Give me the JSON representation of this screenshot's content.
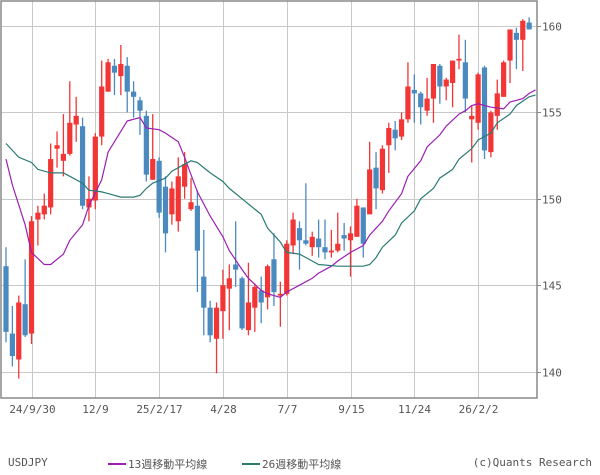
{
  "symbol": "USDJPY",
  "copyright": "(c)Quants Research",
  "legend": [
    {
      "label": "13週移動平均線",
      "color": "#9b1fb3"
    },
    {
      "label": "26週移動平均線",
      "color": "#2a7a72"
    }
  ],
  "colors": {
    "up": "#f23535",
    "down": "#4a8abf",
    "grid": "#c8c8c8",
    "frame": "#888888"
  },
  "chart_data": {
    "type": "candlestick",
    "title": "USDJPY",
    "xlabel": "",
    "ylabel": "",
    "ylim": [
      138.45,
      161.45
    ],
    "yticks": [
      140,
      145,
      150,
      155,
      160
    ],
    "xtick_labels": [
      "24/9/30",
      "12/9",
      "25/2/17",
      "4/28",
      "7/7",
      "9/15",
      "11/24",
      "26/2/2"
    ],
    "xtick_index": [
      4,
      14,
      24,
      34,
      44,
      54,
      64,
      74
    ],
    "grid": true,
    "legend_position": "bottom",
    "candles": [
      [
        146.1,
        147.2,
        141.7,
        142.3
      ],
      [
        142.2,
        143.8,
        140.3,
        140.9
      ],
      [
        140.7,
        144.4,
        139.6,
        144.0
      ],
      [
        143.9,
        146.5,
        142.0,
        142.1
      ],
      [
        142.2,
        149.0,
        141.6,
        148.7
      ],
      [
        148.8,
        149.6,
        147.3,
        149.2
      ],
      [
        149.1,
        150.3,
        148.8,
        149.6
      ],
      [
        149.5,
        153.2,
        149.1,
        152.3
      ],
      [
        152.9,
        153.9,
        151.8,
        153.1
      ],
      [
        152.2,
        154.9,
        151.3,
        152.6
      ],
      [
        152.6,
        156.8,
        152.5,
        154.4
      ],
      [
        154.3,
        155.9,
        153.3,
        154.8
      ],
      [
        154.2,
        154.7,
        149.4,
        149.6
      ],
      [
        149.5,
        151.3,
        148.7,
        150.0
      ],
      [
        149.9,
        153.8,
        149.4,
        153.6
      ],
      [
        153.6,
        158.0,
        153.1,
        156.5
      ],
      [
        156.2,
        158.1,
        156.2,
        157.9
      ],
      [
        157.7,
        158.1,
        156.0,
        157.3
      ],
      [
        157.1,
        158.9,
        156.0,
        157.8
      ],
      [
        157.7,
        158.2,
        155.0,
        156.2
      ],
      [
        156.2,
        156.8,
        154.7,
        155.9
      ],
      [
        155.7,
        155.9,
        153.7,
        155.1
      ],
      [
        154.8,
        155.1,
        151.0,
        151.4
      ],
      [
        151.1,
        154.9,
        151.1,
        152.3
      ],
      [
        152.2,
        152.4,
        148.9,
        149.2
      ],
      [
        150.7,
        151.3,
        146.9,
        148.0
      ],
      [
        149.1,
        151.0,
        148.5,
        150.6
      ],
      [
        148.7,
        152.4,
        148.1,
        151.3
      ],
      [
        150.7,
        152.7,
        150.0,
        152.0
      ],
      [
        149.4,
        151.2,
        149.3,
        149.8
      ],
      [
        149.6,
        150.5,
        144.6,
        147.0
      ],
      [
        145.5,
        148.2,
        142.1,
        143.7
      ],
      [
        143.7,
        144.1,
        141.7,
        142.1
      ],
      [
        141.9,
        144.0,
        139.9,
        143.7
      ],
      [
        143.5,
        145.9,
        141.9,
        145.0
      ],
      [
        144.8,
        146.2,
        142.4,
        145.4
      ],
      [
        146.2,
        148.7,
        144.9,
        145.9
      ],
      [
        145.4,
        145.5,
        142.4,
        142.5
      ],
      [
        142.4,
        146.3,
        142.1,
        144.0
      ],
      [
        143.7,
        145.1,
        142.3,
        144.9
      ],
      [
        144.7,
        145.5,
        142.8,
        144.0
      ],
      [
        144.3,
        146.2,
        143.6,
        146.1
      ],
      [
        146.5,
        148.0,
        143.8,
        144.6
      ],
      [
        144.4,
        145.2,
        142.6,
        144.5
      ],
      [
        144.5,
        147.6,
        144.4,
        147.4
      ],
      [
        147.3,
        149.2,
        146.8,
        148.8
      ],
      [
        148.3,
        148.7,
        145.9,
        147.6
      ],
      [
        147.6,
        150.9,
        147.3,
        147.4
      ],
      [
        147.2,
        148.1,
        146.7,
        147.8
      ],
      [
        147.7,
        148.8,
        146.6,
        147.2
      ],
      [
        147.2,
        148.8,
        146.5,
        146.9
      ],
      [
        146.9,
        148.2,
        146.6,
        147.0
      ],
      [
        147.0,
        149.2,
        146.9,
        147.4
      ],
      [
        147.9,
        148.6,
        147.0,
        147.7
      ],
      [
        147.6,
        148.4,
        145.5,
        148.0
      ],
      [
        147.8,
        150.0,
        147.8,
        149.6
      ],
      [
        149.5,
        149.5,
        146.6,
        147.4
      ],
      [
        149.1,
        153.3,
        149.1,
        151.7
      ],
      [
        151.8,
        152.7,
        149.4,
        150.6
      ],
      [
        150.5,
        153.1,
        150.3,
        152.9
      ],
      [
        153.1,
        154.4,
        151.5,
        154.1
      ],
      [
        154.0,
        154.5,
        152.8,
        153.5
      ],
      [
        153.6,
        155.0,
        153.4,
        154.6
      ],
      [
        154.6,
        157.9,
        154.4,
        156.5
      ],
      [
        156.3,
        157.2,
        154.4,
        156.1
      ],
      [
        156.1,
        156.2,
        154.3,
        155.3
      ],
      [
        155.1,
        157.0,
        154.8,
        155.8
      ],
      [
        155.8,
        157.8,
        154.4,
        157.8
      ],
      [
        157.7,
        157.8,
        155.5,
        156.5
      ],
      [
        156.5,
        157.0,
        155.7,
        156.9
      ],
      [
        156.7,
        158.0,
        155.3,
        158.0
      ],
      [
        158.0,
        159.5,
        157.5,
        158.1
      ],
      [
        157.9,
        159.2,
        155.0,
        155.8
      ],
      [
        154.6,
        155.4,
        152.1,
        154.8
      ],
      [
        154.4,
        157.3,
        154.0,
        157.2
      ],
      [
        157.6,
        157.7,
        152.3,
        152.8
      ],
      [
        152.7,
        155.1,
        152.4,
        155.0
      ],
      [
        154.8,
        156.9,
        154.0,
        156.1
      ],
      [
        155.9,
        158.0,
        155.9,
        157.9
      ],
      [
        158.0,
        159.8,
        156.7,
        159.8
      ],
      [
        159.6,
        159.9,
        157.5,
        159.2
      ],
      [
        159.2,
        160.4,
        157.4,
        160.3
      ],
      [
        160.2,
        160.5,
        159.8,
        159.8
      ]
    ],
    "candle_fields": [
      "open",
      "high",
      "low",
      "close"
    ],
    "series": [
      {
        "name": "13週移動平均線",
        "color": "#9b1fb3",
        "points": [
          [
            0,
            152.3
          ],
          [
            1,
            150.8
          ],
          [
            3,
            148.5
          ],
          [
            4,
            146.9
          ],
          [
            6,
            146.2
          ],
          [
            7,
            146.2
          ],
          [
            9,
            146.8
          ],
          [
            10,
            147.6
          ],
          [
            12,
            148.5
          ],
          [
            13,
            149.6
          ],
          [
            15,
            151.1
          ],
          [
            16,
            152.7
          ],
          [
            18,
            153.9
          ],
          [
            19,
            154.5
          ],
          [
            21,
            154.7
          ],
          [
            22,
            154.1
          ],
          [
            24,
            154.0
          ],
          [
            25,
            153.8
          ],
          [
            27,
            153.3
          ],
          [
            28,
            152.4
          ],
          [
            30,
            150.4
          ],
          [
            32,
            149.0
          ],
          [
            34,
            147.8
          ],
          [
            35,
            147.0
          ],
          [
            37,
            145.9
          ],
          [
            38,
            145.4
          ],
          [
            40,
            144.7
          ],
          [
            41,
            144.5
          ],
          [
            43,
            144.3
          ],
          [
            44,
            144.6
          ],
          [
            46,
            145.0
          ],
          [
            48,
            145.4
          ],
          [
            49,
            145.7
          ],
          [
            51,
            146.1
          ],
          [
            52,
            146.4
          ],
          [
            54,
            146.9
          ],
          [
            56,
            147.3
          ],
          [
            57,
            147.9
          ],
          [
            58,
            148.3
          ],
          [
            59,
            148.7
          ],
          [
            60,
            149.3
          ],
          [
            62,
            150.3
          ],
          [
            63,
            151.3
          ],
          [
            65,
            152.2
          ],
          [
            66,
            153.0
          ],
          [
            68,
            153.7
          ],
          [
            69,
            154.2
          ],
          [
            71,
            154.9
          ],
          [
            72,
            155.1
          ],
          [
            73,
            155.4
          ],
          [
            74,
            155.5
          ],
          [
            76,
            155.3
          ],
          [
            78,
            155.2
          ],
          [
            79,
            155.6
          ],
          [
            81,
            155.8
          ],
          [
            82,
            156.1
          ],
          [
            83,
            156.3
          ]
        ]
      },
      {
        "name": "26週移動平均線",
        "color": "#2a7a72",
        "points": [
          [
            0,
            153.2
          ],
          [
            2,
            152.4
          ],
          [
            4,
            152.1
          ],
          [
            5,
            151.7
          ],
          [
            7,
            151.5
          ],
          [
            9,
            151.5
          ],
          [
            10,
            151.3
          ],
          [
            12,
            150.9
          ],
          [
            13,
            150.5
          ],
          [
            15,
            150.4
          ],
          [
            16,
            150.3
          ],
          [
            18,
            150.1
          ],
          [
            20,
            150.1
          ],
          [
            21,
            150.2
          ],
          [
            22,
            150.6
          ],
          [
            23,
            150.9
          ],
          [
            25,
            151.2
          ],
          [
            26,
            151.6
          ],
          [
            28,
            152.0
          ],
          [
            29,
            152.2
          ],
          [
            30,
            152.1
          ],
          [
            32,
            151.5
          ],
          [
            34,
            151.0
          ],
          [
            35,
            150.6
          ],
          [
            37,
            150.0
          ],
          [
            38,
            149.7
          ],
          [
            40,
            149.1
          ],
          [
            41,
            148.3
          ],
          [
            43,
            147.5
          ],
          [
            44,
            146.9
          ],
          [
            46,
            146.8
          ],
          [
            48,
            146.4
          ],
          [
            49,
            146.2
          ],
          [
            52,
            146.1
          ],
          [
            56,
            146.1
          ],
          [
            57,
            146.2
          ],
          [
            58,
            146.6
          ],
          [
            59,
            147.2
          ],
          [
            61,
            147.9
          ],
          [
            62,
            148.6
          ],
          [
            64,
            149.3
          ],
          [
            65,
            150.0
          ],
          [
            67,
            150.6
          ],
          [
            68,
            151.2
          ],
          [
            70,
            151.7
          ],
          [
            71,
            152.3
          ],
          [
            73,
            152.9
          ],
          [
            74,
            153.4
          ],
          [
            76,
            153.8
          ],
          [
            77,
            154.4
          ],
          [
            79,
            154.9
          ],
          [
            80,
            155.4
          ],
          [
            82,
            155.9
          ],
          [
            83,
            156.0
          ]
        ]
      }
    ]
  }
}
